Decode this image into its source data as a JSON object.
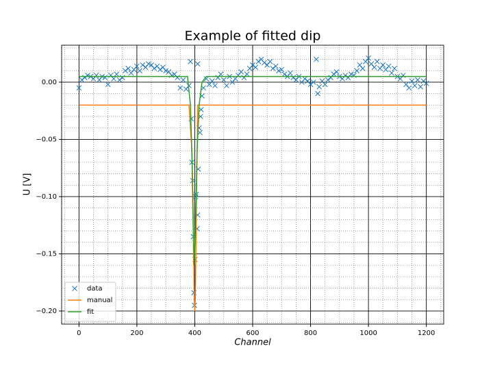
{
  "chart_data": {
    "type": "scatter",
    "title": "Example of fitted dip",
    "xlabel": "Channel",
    "ylabel": "U [V]",
    "xlim": [
      -60,
      1260
    ],
    "ylim": [
      -0.2114,
      0.0323
    ],
    "xticks": [
      0,
      200,
      400,
      600,
      800,
      1000,
      1200
    ],
    "yticks": [
      {
        "value": -0.2,
        "label": "−0.20"
      },
      {
        "value": -0.15,
        "label": "−0.15"
      },
      {
        "value": -0.1,
        "label": "−0.10"
      },
      {
        "value": -0.05,
        "label": "−0.05"
      },
      {
        "value": 0,
        "label": "0.00"
      }
    ],
    "xticks_minor": [
      -50,
      50,
      100,
      150,
      250,
      300,
      350,
      450,
      500,
      550,
      650,
      700,
      750,
      850,
      900,
      950,
      1050,
      1100,
      1150,
      1250
    ],
    "yticks_minor": [
      -0.21,
      -0.19,
      -0.18,
      -0.17,
      -0.16,
      -0.14,
      -0.13,
      -0.12,
      -0.11,
      -0.09,
      -0.08,
      -0.07,
      -0.06,
      -0.04,
      -0.03,
      -0.02,
      -0.01,
      0.01,
      0.02,
      0.03
    ],
    "grid": true,
    "legend": "lower left",
    "series": [
      {
        "name": "data",
        "color": "#1f77b4",
        "marker": "x",
        "x": [
          0,
          10,
          20,
          30,
          40,
          50,
          60,
          70,
          80,
          90,
          100,
          110,
          120,
          130,
          140,
          150,
          160,
          170,
          180,
          190,
          200,
          210,
          220,
          230,
          240,
          250,
          260,
          270,
          280,
          290,
          300,
          310,
          320,
          330,
          340,
          350,
          360,
          370,
          380,
          385,
          388,
          390,
          393,
          395,
          397,
          399,
          401,
          403,
          405,
          408,
          410,
          412,
          415,
          418,
          420,
          422,
          425,
          410,
          430,
          440,
          450,
          460,
          470,
          480,
          490,
          500,
          510,
          520,
          530,
          540,
          550,
          560,
          570,
          580,
          590,
          600,
          610,
          620,
          630,
          640,
          650,
          660,
          670,
          680,
          690,
          700,
          710,
          720,
          730,
          740,
          750,
          760,
          770,
          780,
          790,
          800,
          810,
          820,
          825,
          830,
          840,
          850,
          860,
          870,
          880,
          890,
          900,
          910,
          920,
          930,
          940,
          950,
          960,
          970,
          980,
          990,
          1000,
          1010,
          1020,
          1030,
          1040,
          1050,
          1060,
          1070,
          1080,
          1090,
          1100,
          1110,
          1120,
          1130,
          1140,
          1150,
          1160,
          1170,
          1180,
          1190,
          1200
        ],
        "values": [
          -0.005,
          0.002,
          0.004,
          0.006,
          0.005,
          0.003,
          0.006,
          0.002,
          0.005,
          0.004,
          -0.002,
          0.006,
          0.003,
          0.007,
          0.002,
          0.004,
          0.01,
          0.012,
          0.008,
          0.011,
          0.014,
          0.01,
          0.015,
          0.013,
          0.016,
          0.015,
          0.012,
          0.014,
          0.011,
          0.013,
          0.01,
          0.009,
          0.006,
          0.007,
          0.004,
          -0.005,
          0.002,
          -0.006,
          -0.003,
          0.018,
          -0.032,
          -0.07,
          -0.086,
          -0.135,
          -0.184,
          -0.195,
          -0.155,
          -0.1,
          -0.098,
          -0.128,
          -0.116,
          -0.076,
          -0.04,
          -0.044,
          -0.03,
          -0.024,
          -0.012,
          0.016,
          -0.005,
          0.003,
          -0.002,
          0.001,
          -0.003,
          0.004,
          0.007,
          0.002,
          -0.003,
          0.005,
          0.0,
          0.003,
          0.006,
          0.009,
          0.004,
          0.007,
          0.012,
          0.015,
          0.013,
          0.018,
          0.02,
          0.017,
          0.015,
          0.018,
          0.012,
          0.014,
          0.01,
          0.011,
          0.007,
          0.005,
          0.008,
          0.004,
          0.002,
          0.005,
          0.0,
          0.003,
          0.001,
          -0.002,
          0.0,
          0.02,
          -0.01,
          -0.004,
          0.001,
          -0.002,
          0.002,
          0.004,
          0.007,
          0.009,
          0.005,
          0.003,
          0.006,
          0.004,
          0.007,
          0.006,
          0.01,
          0.015,
          0.012,
          0.018,
          0.021,
          0.016,
          0.013,
          0.018,
          0.012,
          0.015,
          0.011,
          0.014,
          0.008,
          0.012,
          0.005,
          0.003,
          0.006,
          -0.002,
          -0.005,
          0.001,
          -0.003,
          0.002,
          -0.004,
          0.001,
          -0.001
        ]
      },
      {
        "name": "manual",
        "color": "#ff7f0e",
        "linestyle": "-",
        "x": [
          0,
          380,
          390,
          398,
          400,
          402,
          410,
          1200
        ],
        "values": [
          -0.02,
          -0.02,
          -0.06,
          -0.19,
          -0.2,
          -0.19,
          -0.02,
          -0.02
        ]
      },
      {
        "name": "fit",
        "color": "#2ca02c",
        "linestyle": "-",
        "x": [
          0,
          375,
          385,
          392,
          398,
          402,
          408,
          415,
          425,
          440,
          1200
        ],
        "values": [
          0.005,
          0.005,
          -0.02,
          -0.08,
          -0.16,
          -0.13,
          -0.06,
          -0.02,
          0.0,
          0.005,
          0.005
        ]
      }
    ]
  }
}
